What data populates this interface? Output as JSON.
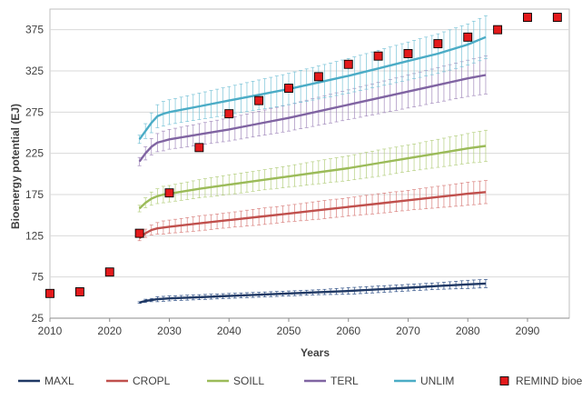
{
  "chart_data": {
    "type": "line",
    "title": "",
    "xlabel": "Years",
    "ylabel": "Bioenergy potential (EJ)",
    "xlim": [
      2010,
      2097
    ],
    "ylim": [
      25,
      400
    ],
    "xticks": [
      2010,
      2020,
      2030,
      2040,
      2050,
      2060,
      2070,
      2080,
      2090
    ],
    "yticks": [
      25,
      75,
      125,
      175,
      225,
      275,
      325,
      375
    ],
    "grid": "horizontal",
    "legend_position": "bottom",
    "series": [
      {
        "name": "MAXL",
        "kind": "line",
        "color": "#1f3864",
        "err_color": "#2e4f86",
        "x": [
          2025,
          2026,
          2027,
          2028,
          2029,
          2030,
          2035,
          2040,
          2045,
          2050,
          2055,
          2060,
          2065,
          2070,
          2075,
          2080,
          2083
        ],
        "y": [
          44,
          46,
          47,
          48,
          48.5,
          49,
          50.5,
          52,
          53.5,
          55,
          56.5,
          58,
          60,
          62,
          64,
          66,
          67
        ],
        "err": [
          1,
          2,
          2,
          3,
          3,
          3,
          3,
          3,
          3,
          3,
          3,
          4,
          4,
          4,
          4,
          5,
          5
        ]
      },
      {
        "name": "CROPL",
        "kind": "line",
        "color": "#c0504d",
        "err_color": "#d9817e",
        "x": [
          2025,
          2026,
          2027,
          2028,
          2029,
          2030,
          2035,
          2040,
          2045,
          2050,
          2055,
          2060,
          2065,
          2070,
          2075,
          2080,
          2083
        ],
        "y": [
          122,
          128,
          132,
          134,
          135,
          136,
          140,
          144,
          148,
          152,
          156,
          160,
          164,
          168,
          172,
          176,
          178
        ],
        "err": [
          3,
          5,
          6,
          7,
          8,
          8,
          9,
          9,
          10,
          10,
          11,
          11,
          12,
          12,
          13,
          14,
          14
        ]
      },
      {
        "name": "SOILL",
        "kind": "line",
        "color": "#9bbb59",
        "err_color": "#b5cf80",
        "x": [
          2025,
          2026,
          2027,
          2028,
          2029,
          2030,
          2035,
          2040,
          2045,
          2050,
          2055,
          2060,
          2065,
          2070,
          2075,
          2080,
          2083
        ],
        "y": [
          158,
          165,
          170,
          173,
          175,
          176,
          182,
          187,
          192,
          197,
          202,
          207,
          213,
          219,
          225,
          231,
          234
        ],
        "err": [
          4,
          6,
          8,
          9,
          10,
          10,
          11,
          12,
          12,
          13,
          14,
          15,
          16,
          16,
          17,
          18,
          19
        ]
      },
      {
        "name": "TERL",
        "kind": "line",
        "color": "#8064a2",
        "err_color": "#a38bbd",
        "x": [
          2025,
          2026,
          2027,
          2028,
          2029,
          2030,
          2035,
          2040,
          2045,
          2050,
          2055,
          2060,
          2065,
          2070,
          2075,
          2080,
          2083
        ],
        "y": [
          215,
          225,
          233,
          238,
          240,
          242,
          248,
          254,
          261,
          268,
          276,
          284,
          292,
          300,
          308,
          316,
          320
        ],
        "err": [
          5,
          8,
          10,
          11,
          12,
          12,
          13,
          14,
          15,
          16,
          17,
          18,
          19,
          20,
          21,
          22,
          23
        ]
      },
      {
        "name": "UNLIM",
        "kind": "line",
        "color": "#4bacc6",
        "err_color": "#79c3d7",
        "x": [
          2025,
          2026,
          2027,
          2028,
          2029,
          2030,
          2035,
          2040,
          2045,
          2050,
          2055,
          2060,
          2065,
          2070,
          2075,
          2080,
          2083
        ],
        "y": [
          242,
          252,
          262,
          270,
          273,
          275,
          282,
          289,
          296,
          303,
          311,
          319,
          328,
          337,
          346,
          357,
          366
        ],
        "err": [
          5,
          9,
          12,
          14,
          15,
          15,
          16,
          17,
          18,
          19,
          20,
          21,
          22,
          23,
          24,
          25,
          26
        ]
      },
      {
        "name": "REMIND bioenergy demand",
        "kind": "marker",
        "color": "#e41a1c",
        "x": [
          2010,
          2015,
          2020,
          2025,
          2030,
          2035,
          2040,
          2045,
          2050,
          2055,
          2060,
          2065,
          2070,
          2075,
          2080,
          2085,
          2090,
          2095
        ],
        "y": [
          55,
          57,
          81,
          128,
          177,
          232,
          273,
          289,
          304,
          318,
          333,
          343,
          346,
          358,
          366,
          375,
          390,
          390
        ]
      }
    ]
  }
}
